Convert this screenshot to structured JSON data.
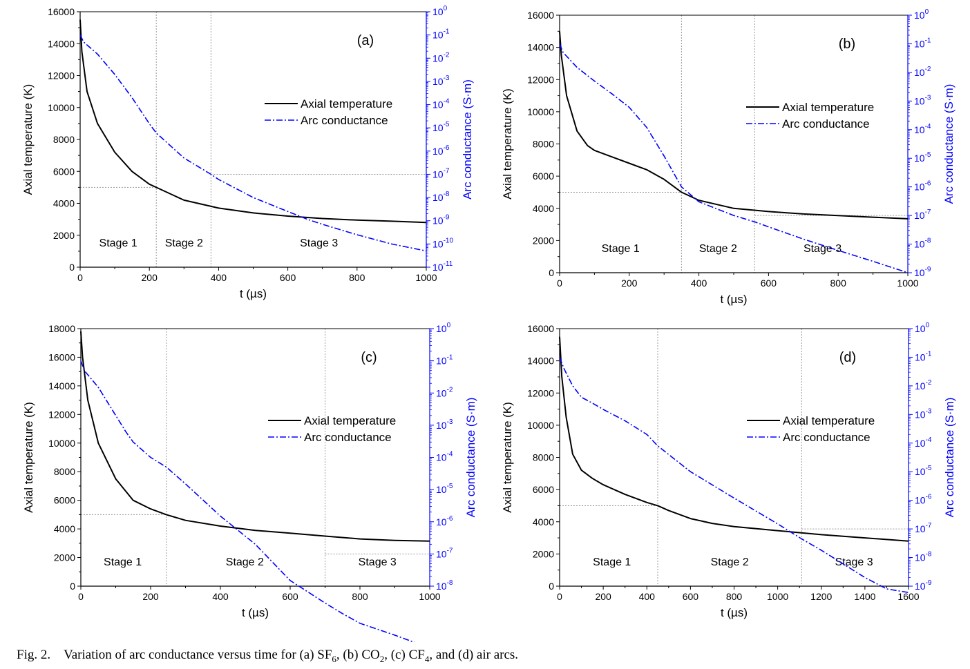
{
  "caption": {
    "label": "Fig. 2.",
    "before": "Variation of arc conductance versus time for (a) SF",
    "sub1": "6",
    "mid1": ", (b) CO",
    "sub2": "2",
    "mid2": ", (c) CF",
    "sub3": "4",
    "after": ", and (d) air arcs."
  },
  "colors": {
    "temperature": "#000000",
    "conductance": "#0000ff",
    "guide": "#9a9a9a"
  },
  "chart_data": [
    {
      "type": "line",
      "panel_label": "(a)",
      "xlabel": "t (µs)",
      "ylabel_left": "Axial temperature (K)",
      "ylabel_right": "Arc conductance (S·m)",
      "xlim": [
        0,
        1000
      ],
      "xticks": [
        0,
        200,
        400,
        600,
        800,
        1000
      ],
      "ylim_left": [
        0,
        16000
      ],
      "yticks_left": [
        0,
        2000,
        4000,
        6000,
        8000,
        10000,
        12000,
        14000,
        16000
      ],
      "right_scale": "log",
      "right_exp_range": [
        -11,
        0
      ],
      "legend": [
        "Axial temperature",
        "Arc conductance"
      ],
      "legend_position": "upper-right",
      "stages": [
        {
          "label": "Stage 1",
          "x": 110
        },
        {
          "label": "Stage 2",
          "x": 300
        },
        {
          "label": "Stage 3",
          "x": 690
        }
      ],
      "stage_boundaries": [
        220,
        378
      ],
      "guide_lines": [
        {
          "axis": "left",
          "y": 5000,
          "x_from": 0,
          "x_to": 220
        },
        {
          "axis": "right",
          "y": 1e-07,
          "x_from": 378,
          "x_to": 1000
        }
      ],
      "series": [
        {
          "name": "Axial temperature",
          "axis": "left",
          "style": "solid",
          "x": [
            0,
            5,
            20,
            50,
            100,
            150,
            200,
            220,
            300,
            400,
            500,
            600,
            700,
            800,
            900,
            1000
          ],
          "y": [
            15500,
            13500,
            11000,
            9000,
            7200,
            6000,
            5200,
            5000,
            4200,
            3700,
            3400,
            3200,
            3050,
            2950,
            2880,
            2800
          ]
        },
        {
          "name": "Arc conductance",
          "axis": "right",
          "style": "dashdot",
          "x": [
            0,
            10,
            50,
            100,
            150,
            200,
            220,
            300,
            378,
            400,
            500,
            600,
            660,
            700,
            800,
            900,
            1000
          ],
          "y": [
            0.1,
            0.05,
            0.015,
            0.002,
            0.0002,
            1.5e-05,
            6e-06,
            5e-07,
            1e-07,
            6e-08,
            1e-08,
            2.5e-09,
            1.1e-09,
            7e-10,
            2.5e-10,
            1e-10,
            5e-11
          ]
        }
      ]
    },
    {
      "type": "line",
      "panel_label": "(b)",
      "xlabel": "t (µs)",
      "ylabel_left": "Axial temperature (K)",
      "ylabel_right": "Arc conductance (S·m)",
      "xlim": [
        0,
        1000
      ],
      "xticks": [
        0,
        200,
        400,
        600,
        800,
        1000
      ],
      "ylim_left": [
        0,
        16000
      ],
      "yticks_left": [
        0,
        2000,
        4000,
        6000,
        8000,
        10000,
        12000,
        14000,
        16000
      ],
      "right_scale": "log",
      "right_exp_range": [
        -9,
        0
      ],
      "legend": [
        "Axial temperature",
        "Arc conductance"
      ],
      "legend_position": "upper-right",
      "stages": [
        {
          "label": "Stage 1",
          "x": 175
        },
        {
          "label": "Stage 2",
          "x": 455
        },
        {
          "label": "Stage 3",
          "x": 755
        }
      ],
      "stage_boundaries": [
        350,
        560
      ],
      "guide_lines": [
        {
          "axis": "left",
          "y": 5000,
          "x_from": 0,
          "x_to": 350
        },
        {
          "axis": "right",
          "y": 1e-07,
          "x_from": 560,
          "x_to": 1000
        }
      ],
      "series": [
        {
          "name": "Axial temperature",
          "axis": "left",
          "style": "solid",
          "x": [
            0,
            5,
            20,
            50,
            80,
            100,
            150,
            200,
            250,
            300,
            350,
            400,
            500,
            600,
            700,
            800,
            900,
            1000
          ],
          "y": [
            15000,
            13500,
            11000,
            8800,
            7900,
            7600,
            7200,
            6800,
            6400,
            5800,
            5000,
            4500,
            4000,
            3800,
            3650,
            3550,
            3450,
            3350
          ]
        },
        {
          "name": "Arc conductance",
          "axis": "right",
          "style": "dashdot",
          "x": [
            0,
            10,
            50,
            100,
            150,
            200,
            250,
            300,
            350,
            400,
            500,
            560,
            600,
            700,
            800,
            900,
            1000
          ],
          "y": [
            0.1,
            0.05,
            0.015,
            0.005,
            0.0018,
            0.0006,
            0.00012,
            1.2e-05,
            1e-06,
            3e-07,
            1e-07,
            6e-08,
            4e-08,
            1.5e-08,
            6e-09,
            2.5e-09,
            1e-09
          ]
        }
      ]
    },
    {
      "type": "line",
      "panel_label": "(c)",
      "xlabel": "t (µs)",
      "ylabel_left": "Axial temperature (K)",
      "ylabel_right": "Arc conductance (S·m)",
      "xlim": [
        0,
        1000
      ],
      "xticks": [
        0,
        200,
        400,
        600,
        800,
        1000
      ],
      "ylim_left": [
        0,
        18000
      ],
      "yticks_left": [
        0,
        2000,
        4000,
        6000,
        8000,
        10000,
        12000,
        14000,
        16000,
        18000
      ],
      "right_scale": "log",
      "right_exp_range": [
        -8,
        0
      ],
      "legend": [
        "Axial temperature",
        "Arc conductance"
      ],
      "legend_position": "upper-right",
      "stages": [
        {
          "label": "Stage 1",
          "x": 120
        },
        {
          "label": "Stage 2",
          "x": 470
        },
        {
          "label": "Stage 3",
          "x": 850
        }
      ],
      "stage_boundaries": [
        245,
        700
      ],
      "guide_lines": [
        {
          "axis": "left",
          "y": 5000,
          "x_from": 0,
          "x_to": 245
        },
        {
          "axis": "right",
          "y": 1e-07,
          "x_from": 700,
          "x_to": 1000
        }
      ],
      "series": [
        {
          "name": "Axial temperature",
          "axis": "left",
          "style": "solid",
          "x": [
            0,
            5,
            20,
            50,
            100,
            150,
            200,
            245,
            300,
            400,
            500,
            600,
            700,
            800,
            900,
            1000
          ],
          "y": [
            17800,
            16000,
            13000,
            10000,
            7500,
            6000,
            5400,
            5000,
            4600,
            4200,
            3900,
            3700,
            3500,
            3300,
            3200,
            3150
          ]
        },
        {
          "name": "Arc conductance",
          "axis": "right",
          "style": "dashdot",
          "x": [
            0,
            10,
            50,
            100,
            130,
            150,
            200,
            245,
            300,
            400,
            500,
            580,
            600,
            700,
            750,
            800,
            900,
            1000
          ],
          "y": [
            0.1,
            0.05,
            0.015,
            0.002,
            0.0006,
            0.0003,
            0.0001,
            5e-05,
            1.5e-05,
            1.5e-06,
            2e-07,
            2.5e-08,
            1.5e-08,
            3e-09,
            1.4e-09,
            7e-10,
            3e-10,
            1.2e-10
          ]
        }
      ]
    },
    {
      "type": "line",
      "panel_label": "(d)",
      "xlabel": "t (µs)",
      "ylabel_left": "Axial temperature (K)",
      "ylabel_right": "Arc conductance (S·m)",
      "xlim": [
        0,
        1600
      ],
      "xticks": [
        0,
        200,
        400,
        600,
        800,
        1000,
        1200,
        1400,
        1600
      ],
      "ylim_left": [
        0,
        16000
      ],
      "yticks_left": [
        0,
        2000,
        4000,
        6000,
        8000,
        10000,
        12000,
        14000,
        16000
      ],
      "right_scale": "log",
      "right_exp_range": [
        -9,
        0
      ],
      "legend": [
        "Axial temperature",
        "Arc conductance"
      ],
      "legend_position": "upper-right",
      "stages": [
        {
          "label": "Stage 1",
          "x": 240
        },
        {
          "label": "Stage 2",
          "x": 780
        },
        {
          "label": "Stage 3",
          "x": 1350
        }
      ],
      "stage_boundaries": [
        450,
        1110
      ],
      "guide_lines": [
        {
          "axis": "left",
          "y": 5000,
          "x_from": 0,
          "x_to": 450
        },
        {
          "axis": "right",
          "y": 1e-07,
          "x_from": 1110,
          "x_to": 1600
        }
      ],
      "series": [
        {
          "name": "Axial temperature",
          "axis": "left",
          "style": "solid",
          "x": [
            0,
            10,
            30,
            60,
            100,
            150,
            200,
            300,
            400,
            450,
            500,
            600,
            700,
            800,
            1000,
            1200,
            1400,
            1600
          ],
          "y": [
            15500,
            13000,
            10500,
            8200,
            7200,
            6700,
            6300,
            5700,
            5200,
            5000,
            4700,
            4200,
            3900,
            3700,
            3450,
            3200,
            3000,
            2800
          ]
        },
        {
          "name": "Arc conductance",
          "axis": "right",
          "style": "dashdot",
          "x": [
            0,
            20,
            60,
            100,
            150,
            200,
            300,
            400,
            450,
            600,
            800,
            1000,
            1110,
            1200,
            1300,
            1400,
            1500,
            1600
          ],
          "y": [
            0.1,
            0.04,
            0.01,
            0.004,
            0.0025,
            0.0015,
            0.0006,
            0.0002,
            8e-05,
            1e-05,
            1.2e-06,
            1.5e-07,
            4.5e-08,
            1.8e-08,
            6e-09,
            2e-09,
            8e-10,
            6e-10
          ]
        }
      ]
    }
  ]
}
